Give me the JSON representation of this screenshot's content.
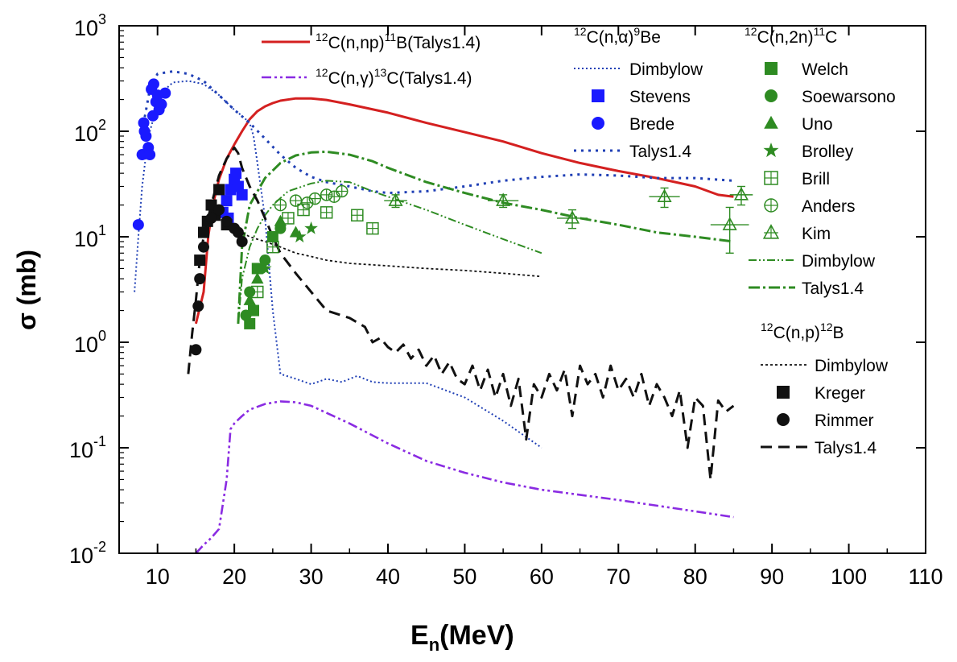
{
  "chart_data": {
    "type": "scatter",
    "xlabel": {
      "main": "E",
      "sub": "n",
      "rest": "(MeV)"
    },
    "ylabel": "σ (mb)",
    "xlim": [
      5,
      110
    ],
    "ylim": [
      0.01,
      1000
    ],
    "yscale": "log",
    "grid": false,
    "x_ticks": [
      "10",
      "20",
      "30",
      "40",
      "50",
      "60",
      "70",
      "80",
      "90",
      "100",
      "110"
    ],
    "y_ticks": [
      {
        "base": "10",
        "exp": "-2",
        "value": 0.01
      },
      {
        "base": "10",
        "exp": "-1",
        "value": 0.1
      },
      {
        "base": "10",
        "exp": "0",
        "value": 1
      },
      {
        "base": "10",
        "exp": "1",
        "value": 10
      },
      {
        "base": "10",
        "exp": "2",
        "value": 100
      },
      {
        "base": "10",
        "exp": "3",
        "value": 1000
      }
    ],
    "legend_groups": [
      {
        "pre": "12",
        "a": "C(n,np)",
        "sup": "11",
        "b": "B(Talys1.4)"
      },
      {
        "pre": "12",
        "a": "C(n,γ)",
        "sup": "13",
        "b": "C(Talys1.4)"
      },
      {
        "pre": "12",
        "a": "C(n,α)",
        "sup": "9",
        "b": "Be"
      },
      {
        "pre": "12",
        "a": "C(n,2n)",
        "sup": "11",
        "b": "C"
      },
      {
        "pre": "12",
        "a": "C(n,p)",
        "sup": "12",
        "b": "B"
      }
    ],
    "series": [
      {
        "name": "Talys1.4",
        "group": "np",
        "kind": "line",
        "color": "#d42020",
        "dash": "",
        "width": 3,
        "x": [
          15.0,
          16.0,
          16.6,
          17.2,
          18.0,
          19.0,
          20.0,
          21.0,
          22.0,
          23.0,
          24.0,
          25.0,
          26.0,
          28.0,
          30.0,
          32.0,
          35.0,
          40.0,
          45.0,
          50.0,
          55.0,
          60.0,
          65.0,
          70.0,
          75.0,
          80.0,
          83.0,
          85.0
        ],
        "y": [
          1.5,
          3.0,
          10,
          20,
          35,
          55,
          75,
          100,
          130,
          155,
          172,
          185,
          195,
          205,
          205,
          198,
          180,
          150,
          120,
          98,
          80,
          62,
          50,
          42,
          36,
          30,
          25,
          24
        ]
      },
      {
        "name": "Talys1.4",
        "group": "gamma",
        "kind": "line",
        "color": "#8a2be2",
        "dash": "12,4,3,4,3,4",
        "width": 2.6,
        "x": [
          15.0,
          16.0,
          17.0,
          18.0,
          19.0,
          19.5,
          20.0,
          21.0,
          22.0,
          24.0,
          26.0,
          28.0,
          30.0,
          35.0,
          40.0,
          45.0,
          50.0,
          55.0,
          60.0,
          70.0,
          80.0,
          85.0
        ],
        "y": [
          0.01,
          0.012,
          0.014,
          0.017,
          0.05,
          0.15,
          0.17,
          0.2,
          0.23,
          0.26,
          0.275,
          0.27,
          0.25,
          0.17,
          0.11,
          0.075,
          0.058,
          0.047,
          0.04,
          0.032,
          0.025,
          0.022
        ]
      },
      {
        "name": "Dimbylow",
        "group": "alpha",
        "kind": "line",
        "color": "#1f3fb5",
        "dash": "2,3",
        "width": 2,
        "x": [
          7.0,
          7.5,
          8.0,
          8.5,
          9.0,
          10.0,
          11.0,
          12.0,
          14.0,
          16.0,
          18.0,
          20.0,
          21.0,
          22.0,
          22.5,
          23.0,
          24.0,
          25.0,
          26.0,
          28.0,
          30.0,
          32.0,
          34.0,
          36.0,
          38.0,
          40.0,
          45.0,
          50.0,
          55.0,
          60.0
        ],
        "y": [
          3,
          10,
          30,
          60,
          100,
          180,
          250,
          290,
          300,
          280,
          220,
          160,
          140,
          120,
          90,
          50,
          15,
          2,
          0.5,
          0.45,
          0.4,
          0.45,
          0.42,
          0.48,
          0.42,
          0.41,
          0.41,
          0.3,
          0.18,
          0.1
        ]
      },
      {
        "name": "Talys1.4",
        "group": "alpha",
        "kind": "line",
        "color": "#1f3fb5",
        "dash": "3,6",
        "width": 3,
        "x": [
          8.0,
          9.0,
          10.0,
          12.0,
          14.0,
          16.0,
          18.0,
          20.0,
          22.0,
          24.0,
          26.0,
          28.0,
          30.0,
          32.0,
          35.0,
          38.0,
          40.0,
          45.0,
          50.0,
          55.0,
          60.0,
          65.0,
          70.0,
          75.0,
          80.0,
          85.0
        ],
        "y": [
          100,
          250,
          350,
          370,
          350,
          300,
          220,
          160,
          120,
          85,
          60,
          45,
          37,
          33,
          30,
          27,
          26,
          27,
          30,
          34,
          37,
          39,
          38,
          36,
          36,
          34
        ]
      },
      {
        "name": "Dimbylow",
        "group": "2n",
        "kind": "line",
        "color": "#2e8b22",
        "dash": "10,3,2,3,2,3",
        "width": 2,
        "x": [
          20.5,
          21.0,
          22.0,
          23.0,
          24.0,
          25.0,
          27.0,
          30.0,
          32.0,
          35.0,
          38.0,
          40.0,
          45.0,
          50.0,
          55.0,
          60.0
        ],
        "y": [
          1.5,
          4,
          8,
          12,
          16,
          20,
          27,
          32,
          34,
          33,
          27,
          24,
          18,
          13,
          9.5,
          7
        ]
      },
      {
        "name": "Talys1.4",
        "group": "2n",
        "kind": "line",
        "color": "#2e8b22",
        "dash": "14,4,3,4",
        "width": 3,
        "x": [
          20.5,
          21.0,
          22.0,
          24.0,
          26.0,
          28.0,
          30.0,
          32.0,
          35.0,
          38.0,
          40.0,
          45.0,
          50.0,
          55.0,
          60.0,
          65.0,
          70.0,
          75.0,
          80.0,
          85.0
        ],
        "y": [
          1.5,
          8,
          20,
          36,
          50,
          59,
          63,
          64,
          60,
          52,
          45,
          33,
          26,
          21,
          18,
          15,
          13,
          11,
          10,
          9
        ]
      },
      {
        "name": "Dimbylow",
        "group": "p",
        "kind": "line",
        "color": "#111111",
        "dash": "3,3",
        "width": 1.8,
        "x": [
          20.0,
          22.0,
          24.0,
          26.0,
          28.0,
          30.0,
          32.0,
          35.0,
          40.0,
          45.0,
          50.0,
          55.0,
          60.0
        ],
        "y": [
          12,
          10,
          9,
          8,
          7,
          6.5,
          6,
          5.6,
          5.3,
          5.0,
          4.8,
          4.5,
          4.2
        ]
      },
      {
        "name": "Talys1.4",
        "group": "p",
        "kind": "line",
        "color": "#111111",
        "dash": "14,8",
        "width": 3,
        "x": [
          14.0,
          14.5,
          15.0,
          15.5,
          16.0,
          17.0,
          18.0,
          19.0,
          20.0,
          20.5,
          21.0,
          22.0,
          23.0,
          24.0,
          25.0,
          26.0,
          28.0,
          30.0,
          32.0,
          35.0,
          37.0,
          38.0,
          39.0,
          40.0,
          41.0,
          42.0,
          43.0,
          44.0,
          45.0,
          46.0,
          47.0,
          48.0,
          49.0,
          50.0,
          51.0,
          52.0,
          53.0,
          54.0,
          55.0,
          56.0,
          57.0,
          58.0,
          59.0,
          60.0,
          61.0,
          62.0,
          63.0,
          64.0,
          65.0,
          66.0,
          67.0,
          68.0,
          69.0,
          70.0,
          71.0,
          72.0,
          73.0,
          74.0,
          75.0,
          76.0,
          77.0,
          78.0,
          79.0,
          80.0,
          81.0,
          82.0,
          83.0,
          84.0,
          85.0
        ],
        "y": [
          0.5,
          1.2,
          2.5,
          6,
          10,
          20,
          38,
          55,
          70,
          62,
          45,
          30,
          22,
          15,
          10,
          7,
          4.5,
          3,
          2,
          1.7,
          1.4,
          1.0,
          1.1,
          0.9,
          0.8,
          0.95,
          0.7,
          0.85,
          0.6,
          0.75,
          0.5,
          0.65,
          0.45,
          0.4,
          0.6,
          0.35,
          0.55,
          0.3,
          0.5,
          0.25,
          0.45,
          0.12,
          0.4,
          0.3,
          0.5,
          0.35,
          0.55,
          0.2,
          0.6,
          0.4,
          0.5,
          0.3,
          0.6,
          0.35,
          0.45,
          0.3,
          0.5,
          0.25,
          0.4,
          0.3,
          0.2,
          0.35,
          0.1,
          0.3,
          0.25,
          0.05,
          0.28,
          0.22,
          0.25
        ]
      },
      {
        "name": "Stevens",
        "group": "alpha",
        "kind": "points",
        "marker": "square-filled",
        "color": "#1a1aff",
        "x": [
          18.5,
          19.0,
          19.5,
          20.0,
          20.5,
          21.0,
          19.2,
          20.2
        ],
        "y": [
          17,
          22,
          28,
          35,
          30,
          25,
          15,
          40
        ]
      },
      {
        "name": "Brede",
        "group": "alpha",
        "kind": "points",
        "marker": "circle-filled",
        "color": "#1a1aff",
        "x": [
          7.5,
          8.0,
          8.2,
          8.5,
          8.8,
          9.0,
          9.2,
          9.5,
          9.8,
          10.0,
          10.2,
          10.5,
          11.0,
          8.3,
          9.4
        ],
        "y": [
          13,
          60,
          120,
          90,
          70,
          60,
          250,
          280,
          190,
          220,
          160,
          180,
          230,
          100,
          140
        ]
      },
      {
        "name": "Welch",
        "group": "2n",
        "kind": "points",
        "marker": "square-filled",
        "color": "#2e8b22",
        "x": [
          22.0,
          22.5,
          23.0,
          25.0
        ],
        "y": [
          1.5,
          2.0,
          5.0,
          10
        ]
      },
      {
        "name": "Soewarsono",
        "group": "2n",
        "kind": "points",
        "marker": "circle-filled",
        "color": "#2e8b22",
        "x": [
          21.5,
          22.0,
          23.5,
          24.0,
          26.0
        ],
        "y": [
          1.8,
          3.0,
          5.0,
          6.0,
          12
        ]
      },
      {
        "name": "Uno",
        "group": "2n",
        "kind": "points",
        "marker": "triangle-filled",
        "color": "#2e8b22",
        "x": [
          22.0,
          23.0,
          26.0,
          28.0
        ],
        "y": [
          2.5,
          4.0,
          14,
          11
        ]
      },
      {
        "name": "Brolley",
        "group": "2n",
        "kind": "points",
        "marker": "star-filled",
        "color": "#2e8b22",
        "x": [
          24.0,
          28.5,
          30.0
        ],
        "y": [
          5.0,
          10,
          12
        ]
      },
      {
        "name": "Brill",
        "group": "2n",
        "kind": "points",
        "marker": "square-plus",
        "color": "#2e8b22",
        "x": [
          23.0,
          25.0,
          27.0,
          29.0,
          32.0,
          36.0,
          38.0
        ],
        "y": [
          3.0,
          8.0,
          15,
          18,
          17,
          16,
          12
        ]
      },
      {
        "name": "Anders",
        "group": "2n",
        "kind": "points",
        "marker": "circle-plus",
        "color": "#2e8b22",
        "x": [
          26.0,
          28.0,
          29.5,
          30.5,
          32.0,
          33.0,
          34.0
        ],
        "y": [
          20,
          22,
          21,
          23,
          25,
          24,
          27
        ]
      },
      {
        "name": "Kim",
        "group": "2n",
        "kind": "points",
        "marker": "triangle-open",
        "color": "#2e8b22",
        "x": [
          41.0,
          55.0,
          64.0,
          76.0,
          84.5,
          86.0
        ],
        "y": [
          22,
          22,
          15,
          24,
          13,
          25
        ],
        "xerr": [
          1.5,
          2.0,
          2.0,
          2.0,
          2.5,
          1.5
        ],
        "yerr": [
          3,
          3,
          3,
          5,
          6,
          5
        ]
      },
      {
        "name": "Kreger",
        "group": "p",
        "kind": "points",
        "marker": "square-filled",
        "color": "#111111",
        "x": [
          15.5,
          16.0,
          16.5,
          17.0,
          17.5,
          18.0,
          19.0
        ],
        "y": [
          6.0,
          11,
          14,
          20,
          16,
          28,
          13
        ]
      },
      {
        "name": "Rimmer",
        "group": "p",
        "kind": "points",
        "marker": "circle-filled",
        "color": "#111111",
        "x": [
          15.0,
          15.3,
          15.5,
          16.0,
          17.0,
          18.0,
          19.0,
          20.0,
          20.5,
          21.0
        ],
        "y": [
          0.85,
          2.2,
          4.0,
          8.0,
          15,
          18,
          14,
          12,
          11,
          9
        ]
      }
    ]
  }
}
